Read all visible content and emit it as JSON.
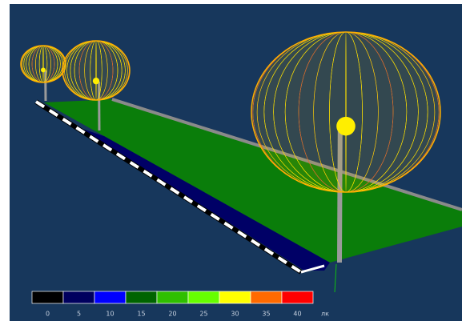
{
  "legend": {
    "colors": [
      "#000000",
      "#00005e",
      "#0000ff",
      "#006400",
      "#2fbf00",
      "#66ff00",
      "#ffff00",
      "#ff6a00",
      "#ff0000"
    ],
    "ticks": [
      0,
      5,
      10,
      15,
      20,
      25,
      30,
      35,
      40
    ],
    "unit": "лк"
  }
}
